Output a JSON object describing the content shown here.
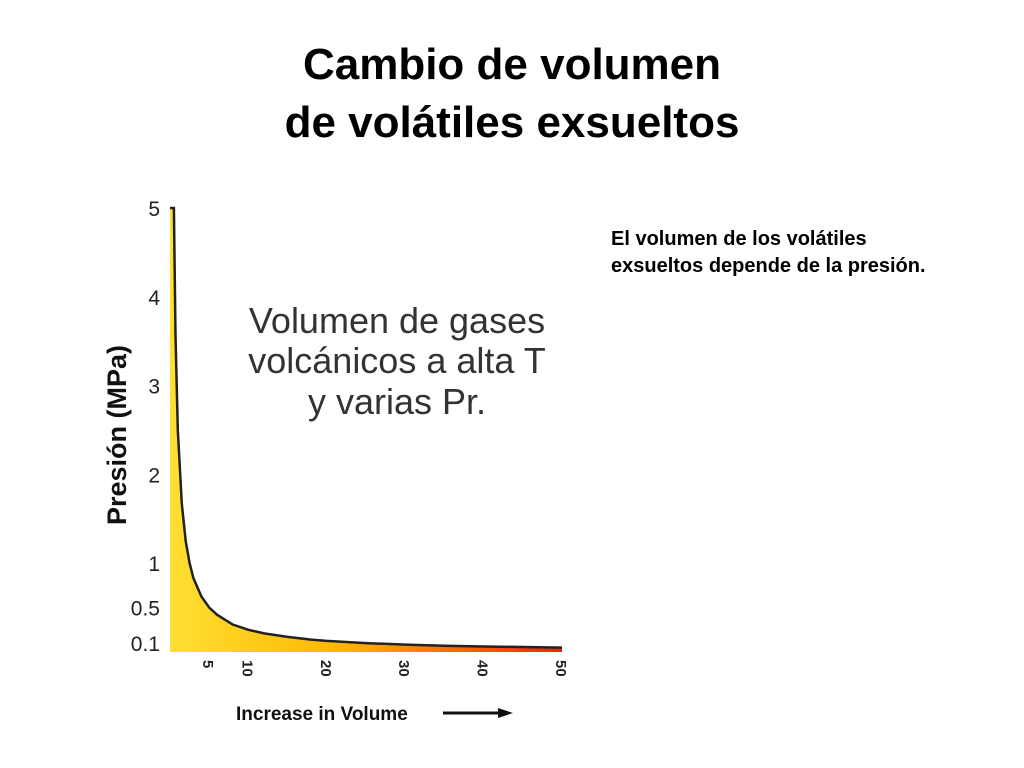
{
  "slide": {
    "title_lines": [
      "Cambio de volumen",
      "de volátiles exsueltos"
    ],
    "note_lines": [
      "El volumen de los volátiles",
      "exsueltos depende de la presión."
    ]
  },
  "chart_data": {
    "type": "area",
    "xlabel": "Increase in Volume",
    "ylabel": "Presión (MPa)",
    "x_ticks": [
      5,
      10,
      20,
      30,
      40,
      50
    ],
    "y_ticks": [
      0.1,
      0.5,
      1,
      2,
      3,
      4,
      5
    ],
    "xlim": [
      0,
      50
    ],
    "ylim": [
      0,
      5
    ],
    "grid": false,
    "annotation_lines": [
      "Volumen de gases",
      "volcánicos a alta T",
      "y varias Pr."
    ],
    "fill_gradient": [
      "#FFE033",
      "#FFB400",
      "#F5200F"
    ],
    "line_color": "#222222",
    "series": [
      {
        "x": [
          0.4,
          0.5,
          0.7,
          1,
          1.5,
          2,
          2.5,
          3,
          4,
          5,
          6,
          8,
          10,
          12,
          15,
          18,
          20,
          25,
          30,
          35,
          40,
          45,
          50
        ],
        "y": [
          5,
          5,
          3.57,
          2.5,
          1.67,
          1.25,
          1,
          0.83,
          0.625,
          0.5,
          0.42,
          0.31,
          0.25,
          0.21,
          0.17,
          0.14,
          0.125,
          0.1,
          0.083,
          0.071,
          0.0625,
          0.056,
          0.05
        ]
      }
    ]
  }
}
